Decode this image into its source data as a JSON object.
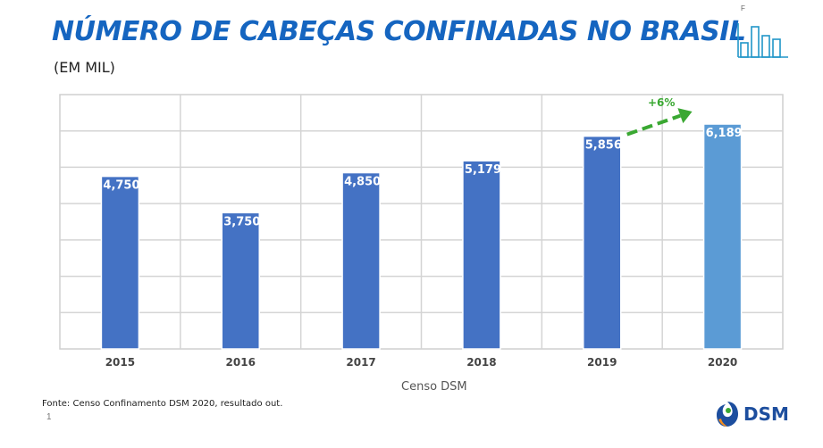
{
  "header": {
    "title": "NÚMERO DE CABEÇAS CONFINADAS NO BRASIL",
    "subtitle": "(EM MIL)",
    "corner_letter": "F",
    "icon": "bar-chart-icon"
  },
  "chart_data": {
    "type": "bar",
    "categories": [
      "2015",
      "2016",
      "2017",
      "2018",
      "2019",
      "2020"
    ],
    "values": [
      4750,
      3750,
      4850,
      5179,
      5856,
      6189
    ],
    "value_labels": [
      "4,750",
      "3,750",
      "4,850",
      "5,179",
      "5,856",
      "6,189"
    ],
    "ylim": [
      0,
      7000
    ],
    "grid": true,
    "annotation": {
      "text": "+6%",
      "from": "2019",
      "to": "2020",
      "color": "#3aa832"
    },
    "colors": {
      "bar": "#4472c4",
      "highlight": "#5b9bd5",
      "highlight_category": "2020"
    }
  },
  "caption": "Censo DSM",
  "footer": {
    "source": "Fonte: Censo Confinamento DSM 2020, resultado out.",
    "page_number": "1",
    "logo_text": "DSM"
  }
}
